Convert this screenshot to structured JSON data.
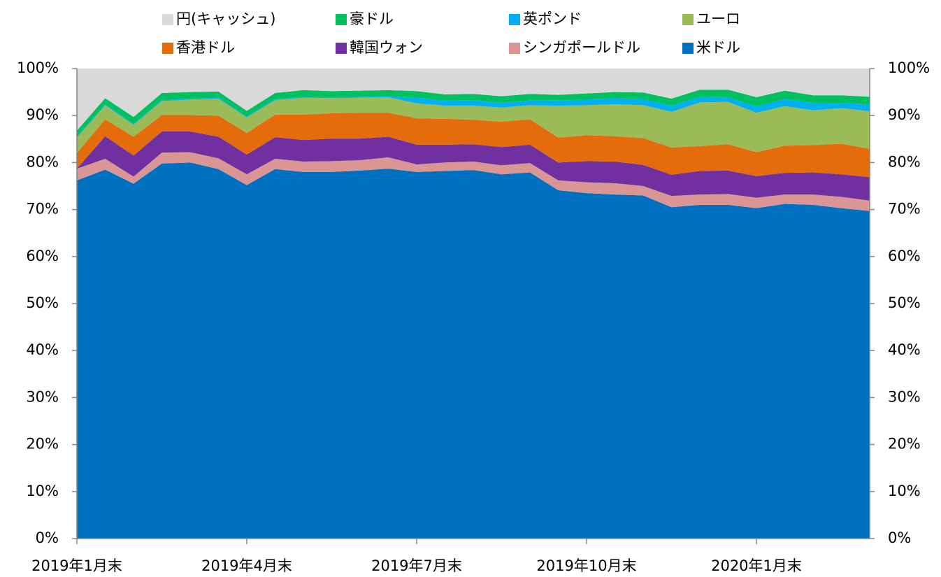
{
  "chart_data": {
    "type": "stacked_area",
    "categories": [
      "2019年1月末",
      null,
      null,
      null,
      null,
      null,
      "2019年4月末",
      null,
      null,
      null,
      null,
      null,
      "2019年7月末",
      null,
      null,
      null,
      null,
      null,
      "2019年10月末",
      null,
      null,
      null,
      null,
      null,
      "2020年1月末",
      null,
      null,
      null,
      null
    ],
    "series": [
      {
        "name": "円(キャッシュ)",
        "color": "#d9d9d9",
        "values": [
          13.2,
          6.3,
          10.3,
          5.2,
          5.0,
          4.9,
          9.0,
          5.2,
          4.6,
          4.8,
          4.7,
          4.6,
          4.8,
          5.5,
          5.4,
          5.9,
          5.4,
          5.6,
          5.3,
          5.0,
          5.1,
          6.4,
          4.5,
          4.5,
          6.1,
          4.7,
          5.7,
          5.7,
          6.0
        ]
      },
      {
        "name": "豪ドル",
        "color": "#00c060",
        "values": [
          1.3,
          1.3,
          1.5,
          1.5,
          1.4,
          1.3,
          1.2,
          1.3,
          1.4,
          1.3,
          1.3,
          1.3,
          1.4,
          1.3,
          1.3,
          1.4,
          1.4,
          1.2,
          1.3,
          1.3,
          1.4,
          1.5,
          1.5,
          1.6,
          2.0,
          1.8,
          1.6,
          1.6,
          1.6
        ]
      },
      {
        "name": "英ポンド",
        "color": "#00b0f0",
        "values": [
          0.2,
          0.2,
          0.2,
          0.2,
          0.2,
          0.2,
          0.2,
          0.2,
          0.2,
          0.2,
          0.2,
          0.2,
          1.2,
          1.1,
          1.2,
          1.0,
          1.0,
          1.1,
          1.2,
          1.3,
          1.3,
          1.3,
          1.2,
          1.0,
          1.3,
          1.5,
          1.6,
          1.1,
          1.5
        ]
      },
      {
        "name": "ユーロ",
        "color": "#9bbb59",
        "values": [
          3.3,
          3.0,
          2.5,
          3.0,
          3.3,
          3.6,
          3.3,
          3.1,
          3.6,
          3.2,
          3.2,
          3.3,
          3.2,
          2.8,
          3.0,
          3.0,
          3.0,
          6.8,
          6.4,
          6.8,
          7.0,
          7.6,
          9.3,
          9.0,
          8.4,
          8.4,
          7.4,
          7.6,
          8.0
        ]
      },
      {
        "name": "香港ドル",
        "color": "#e46c0a",
        "values": [
          3.3,
          3.6,
          4.0,
          3.5,
          3.5,
          4.5,
          4.6,
          4.8,
          5.4,
          5.4,
          5.5,
          5.1,
          5.6,
          5.5,
          5.2,
          5.4,
          5.4,
          5.3,
          5.5,
          5.4,
          5.7,
          5.8,
          5.3,
          5.6,
          5.1,
          5.8,
          5.8,
          6.5,
          6.0
        ]
      },
      {
        "name": "韓国ウォン",
        "color": "#7030a0",
        "values": [
          0,
          4.8,
          4.5,
          4.5,
          4.4,
          4.6,
          4.2,
          4.6,
          4.6,
          4.8,
          4.6,
          4.4,
          4.2,
          3.8,
          3.7,
          3.9,
          3.9,
          3.8,
          4.5,
          4.6,
          4.5,
          4.5,
          5.0,
          5.0,
          4.6,
          4.6,
          4.7,
          4.8,
          5.0
        ]
      },
      {
        "name": "シンガポールドル",
        "color": "#da9694",
        "values": [
          2.5,
          2.3,
          1.5,
          2.3,
          2.2,
          2.3,
          2.3,
          2.2,
          2.2,
          2.3,
          2.2,
          2.4,
          1.6,
          1.8,
          1.8,
          1.9,
          2.0,
          2.1,
          2.3,
          2.4,
          2.0,
          2.4,
          2.2,
          2.3,
          2.2,
          2.0,
          2.2,
          2.4,
          2.2
        ]
      },
      {
        "name": "米ドル",
        "color": "#0070c0",
        "values": [
          76.2,
          78.5,
          75.5,
          79.8,
          80.0,
          78.6,
          75.2,
          78.6,
          78.0,
          78.0,
          78.3,
          78.7,
          78.0,
          78.2,
          78.4,
          77.5,
          77.9,
          74.1,
          73.5,
          73.2,
          73.0,
          70.5,
          71.0,
          71.0,
          70.3,
          71.2,
          71.0,
          70.3,
          69.7
        ]
      }
    ],
    "ylim": [
      0,
      100
    ],
    "yticks": [
      {
        "value": 0,
        "label": "0%"
      },
      {
        "value": 10,
        "label": "10%"
      },
      {
        "value": 20,
        "label": "20%"
      },
      {
        "value": 30,
        "label": "30%"
      },
      {
        "value": 40,
        "label": "40%"
      },
      {
        "value": 50,
        "label": "50%"
      },
      {
        "value": 60,
        "label": "60%"
      },
      {
        "value": 70,
        "label": "70%"
      },
      {
        "value": 80,
        "label": "80%"
      },
      {
        "value": 90,
        "label": "90%"
      },
      {
        "value": 100,
        "label": "100%"
      }
    ],
    "y2lim": [
      0,
      100
    ],
    "y2ticks": [
      {
        "value": 0,
        "label": "0%"
      },
      {
        "value": 10,
        "label": "10%"
      },
      {
        "value": 20,
        "label": "20%"
      },
      {
        "value": 30,
        "label": "30%"
      },
      {
        "value": 40,
        "label": "40%"
      },
      {
        "value": 50,
        "label": "50%"
      },
      {
        "value": 60,
        "label": "60%"
      },
      {
        "value": 70,
        "label": "70%"
      },
      {
        "value": 80,
        "label": "80%"
      },
      {
        "value": 90,
        "label": "90%"
      },
      {
        "value": 100,
        "label": "100%"
      }
    ],
    "legend": "top"
  }
}
